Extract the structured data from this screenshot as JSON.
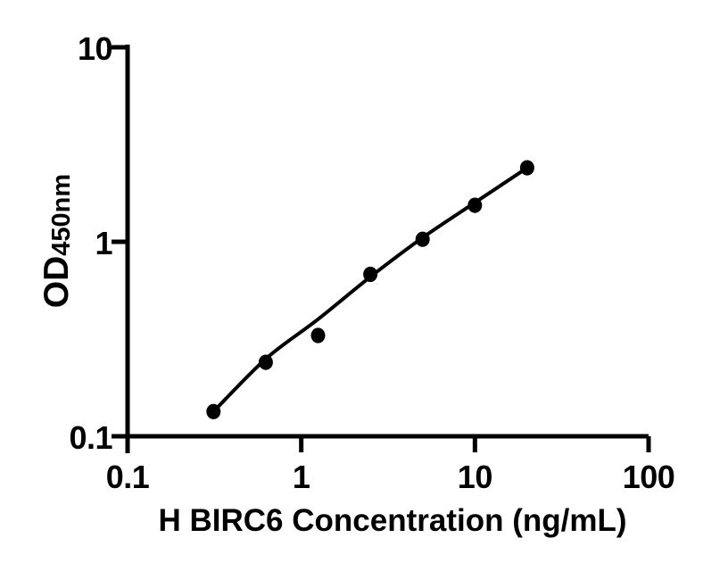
{
  "colors": {
    "foreground": "#000000",
    "background": "#ffffff"
  },
  "chart_data": {
    "type": "scatter",
    "title": "",
    "xlabel": "H BIRC6 Concentration (ng/mL)",
    "ylabel_main": "OD",
    "ylabel_subscript": "450nm",
    "x_scale": "log",
    "y_scale": "log",
    "xlim": [
      0.1,
      100
    ],
    "ylim": [
      0.1,
      10
    ],
    "x_ticks": [
      0.1,
      1,
      10,
      100
    ],
    "x_tick_labels": [
      "0.1",
      "1",
      "10",
      "100"
    ],
    "y_ticks": [
      10,
      1,
      0.1
    ],
    "y_tick_labels": [
      "10",
      "1",
      "0.1"
    ],
    "grid": false,
    "legend": null,
    "series": [
      {
        "name": "standard-points",
        "type": "scatter",
        "marker": "circle",
        "color": "#000000",
        "x": [
          0.3125,
          0.625,
          1.25,
          2.5,
          5,
          10,
          20
        ],
        "y": [
          0.134,
          0.24,
          0.33,
          0.68,
          1.03,
          1.54,
          2.4
        ]
      },
      {
        "name": "fit-curve",
        "type": "line",
        "color": "#000000",
        "x": [
          0.3125,
          0.625,
          1.25,
          2.5,
          5,
          10,
          20
        ],
        "y": [
          0.134,
          0.25,
          0.4,
          0.66,
          1.05,
          1.59,
          2.4
        ]
      }
    ]
  }
}
